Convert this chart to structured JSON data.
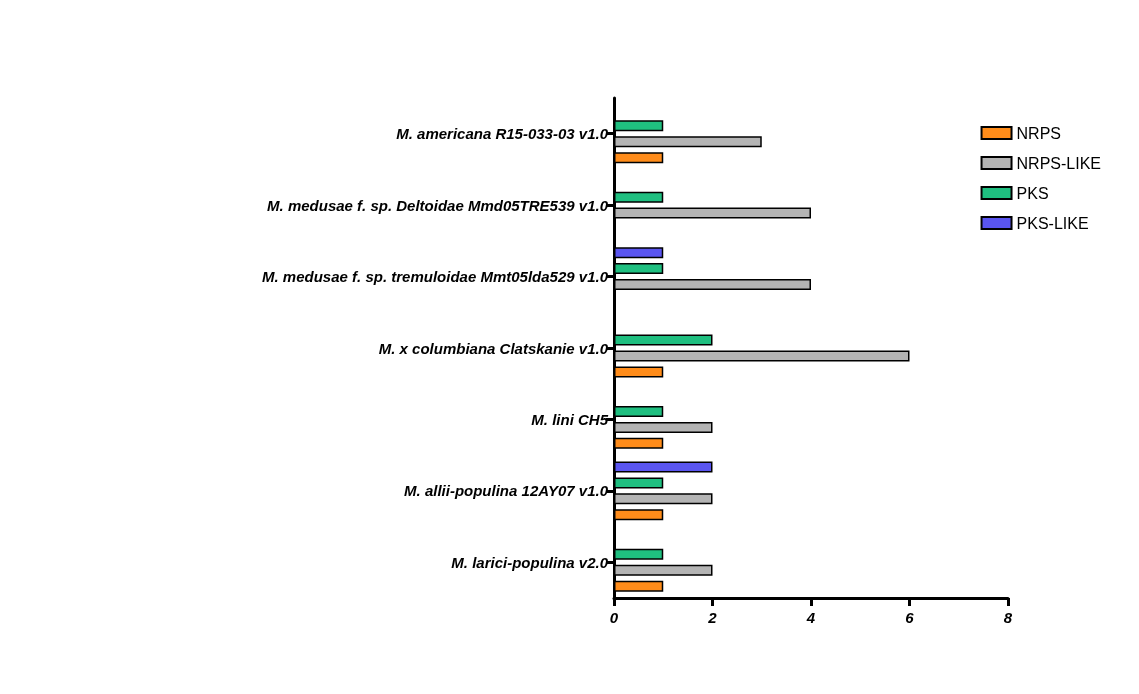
{
  "chart_data": {
    "type": "bar",
    "orientation": "horizontal",
    "categories": [
      "M. americana R15-033-03 v1.0",
      "M. medusae f. sp. Deltoidae Mmd05TRE539 v1.0",
      "M. medusae f. sp. tremuloidae Mmt05lda529 v1.0",
      "M. x columbiana Clatskanie v1.0",
      "M. lini CH5",
      "M. allii-populina 12AY07 v1.0",
      "M. larici-populina v2.0"
    ],
    "series": [
      {
        "name": "PKS-LIKE",
        "color": "#5a55f0",
        "values": [
          0,
          0,
          1,
          0,
          0,
          2,
          0
        ]
      },
      {
        "name": "PKS",
        "color": "#1fbf80",
        "values": [
          1,
          1,
          1,
          2,
          1,
          1,
          1
        ]
      },
      {
        "name": "NRPS-LIKE",
        "color": "#b4b4b4",
        "values": [
          3,
          4,
          4,
          6,
          2,
          2,
          2
        ]
      },
      {
        "name": "NRPS",
        "color": "#ff8c1a",
        "values": [
          1,
          0,
          0,
          1,
          1,
          1,
          1
        ]
      }
    ],
    "xlim": [
      0,
      8
    ],
    "xticks": [
      0,
      2,
      4,
      6,
      8
    ],
    "grid": false,
    "legend": "top right"
  }
}
